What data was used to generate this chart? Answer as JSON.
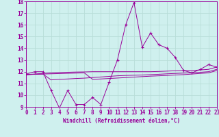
{
  "xlabel": "Windchill (Refroidissement éolien,°C)",
  "background_color": "#cff0ee",
  "grid_color": "#b8ddd8",
  "line_color": "#990099",
  "x": [
    0,
    1,
    2,
    3,
    4,
    5,
    6,
    7,
    8,
    9,
    10,
    11,
    12,
    13,
    14,
    15,
    16,
    17,
    18,
    19,
    20,
    21,
    22,
    23
  ],
  "y_main": [
    11.8,
    12.0,
    12.0,
    10.4,
    8.9,
    10.4,
    9.2,
    9.2,
    9.8,
    9.2,
    11.1,
    13.0,
    16.0,
    17.9,
    14.1,
    15.3,
    14.3,
    14.0,
    13.2,
    12.1,
    11.9,
    12.2,
    12.6,
    12.4
  ],
  "y_smooth1": [
    11.75,
    11.8,
    11.85,
    11.9,
    11.93,
    11.95,
    11.97,
    11.98,
    12.0,
    12.0,
    12.0,
    12.0,
    12.0,
    12.0,
    12.0,
    12.0,
    12.02,
    12.05,
    12.08,
    12.1,
    12.1,
    12.15,
    12.2,
    12.4
  ],
  "y_smooth2": [
    11.75,
    11.78,
    11.8,
    11.3,
    11.35,
    11.38,
    11.42,
    11.45,
    11.5,
    11.55,
    11.6,
    11.65,
    11.68,
    11.7,
    11.72,
    11.75,
    11.78,
    11.82,
    11.85,
    11.88,
    11.9,
    11.95,
    12.0,
    12.2
  ],
  "y_smooth3": [
    11.75,
    11.78,
    11.8,
    11.82,
    11.84,
    11.86,
    11.88,
    11.9,
    11.35,
    11.38,
    11.42,
    11.46,
    11.5,
    11.54,
    11.58,
    11.62,
    11.65,
    11.68,
    11.72,
    11.75,
    11.8,
    11.85,
    11.9,
    12.1
  ],
  "ylim": [
    9,
    18
  ],
  "xlim": [
    0,
    23
  ],
  "xtick_step": 1,
  "ytick_step": 1
}
